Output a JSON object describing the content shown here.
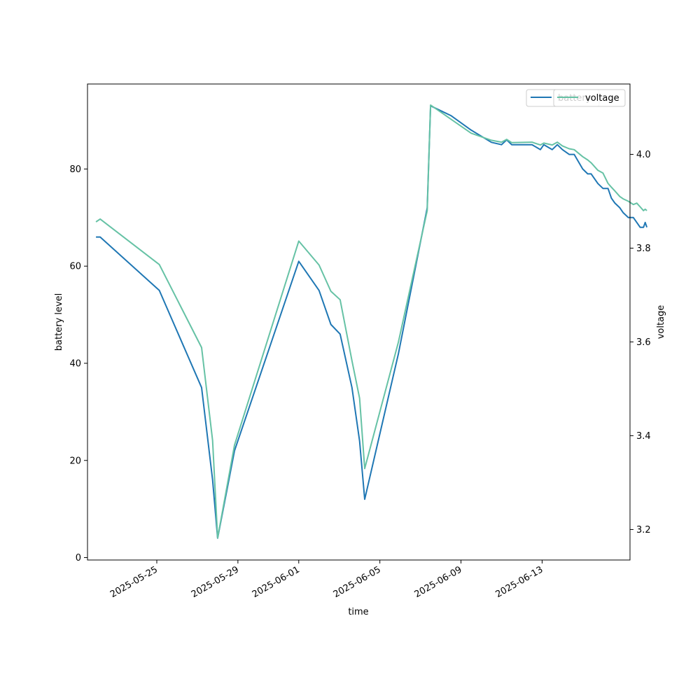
{
  "chart_data": {
    "type": "line",
    "title": "",
    "xlabel": "time",
    "ylabel": "battery level",
    "y2label": "voltage",
    "xlim": [
      "2025-05-21T14:00",
      "2025-06-17T08:00"
    ],
    "ylim": [
      -0.5,
      97.5
    ],
    "y2lim": [
      3.135,
      4.15
    ],
    "xticks": [
      "2025-05-25",
      "2025-05-29",
      "2025-06-01",
      "2025-06-05",
      "2025-06-09",
      "2025-06-13"
    ],
    "yticks": [
      0,
      20,
      40,
      60,
      80
    ],
    "y2ticks": [
      3.2,
      3.4,
      3.6,
      3.8,
      4.0
    ],
    "grid": false,
    "legend": {
      "placement": "top-right",
      "entries": [
        "battery",
        "voltage"
      ]
    },
    "series": [
      {
        "name": "battery",
        "axis": "left",
        "color": "#1f77b4",
        "points": [
          [
            "2025-05-22T00:00",
            66
          ],
          [
            "2025-05-22T05:00",
            66
          ],
          [
            "2025-05-25T03:00",
            55
          ],
          [
            "2025-05-27T05:00",
            35
          ],
          [
            "2025-05-27T18:00",
            16
          ],
          [
            "2025-05-28T00:00",
            4
          ],
          [
            "2025-05-28T20:00",
            22
          ],
          [
            "2025-06-01T00:00",
            61
          ],
          [
            "2025-06-02T00:00",
            55
          ],
          [
            "2025-06-02T14:00",
            48
          ],
          [
            "2025-06-03T01:00",
            46
          ],
          [
            "2025-06-03T15:00",
            35
          ],
          [
            "2025-06-04T00:00",
            24
          ],
          [
            "2025-06-04T06:00",
            12
          ],
          [
            "2025-06-05T22:00",
            42
          ],
          [
            "2025-06-07T08:00",
            72
          ],
          [
            "2025-06-07T12:00",
            93
          ],
          [
            "2025-06-08T12:00",
            91
          ],
          [
            "2025-06-09T12:00",
            88
          ],
          [
            "2025-06-10T12:00",
            85.5
          ],
          [
            "2025-06-11T00:00",
            85
          ],
          [
            "2025-06-11T06:00",
            86
          ],
          [
            "2025-06-11T12:00",
            85
          ],
          [
            "2025-06-12T12:00",
            85
          ],
          [
            "2025-06-12T22:00",
            84
          ],
          [
            "2025-06-13T02:00",
            85
          ],
          [
            "2025-06-13T12:00",
            84
          ],
          [
            "2025-06-13T18:00",
            85
          ],
          [
            "2025-06-14T00:00",
            84
          ],
          [
            "2025-06-14T08:00",
            83
          ],
          [
            "2025-06-14T14:00",
            83
          ],
          [
            "2025-06-15T00:00",
            80
          ],
          [
            "2025-06-15T06:00",
            79
          ],
          [
            "2025-06-15T10:00",
            79
          ],
          [
            "2025-06-15T14:00",
            78
          ],
          [
            "2025-06-15T18:00",
            77
          ],
          [
            "2025-06-16T00:00",
            76
          ],
          [
            "2025-06-16T06:00",
            76
          ],
          [
            "2025-06-16T10:00",
            74
          ],
          [
            "2025-06-16T14:00",
            73
          ],
          [
            "2025-06-16T20:00",
            72
          ],
          [
            "2025-06-17T00:00",
            71
          ],
          [
            "2025-06-17T06:00",
            70
          ],
          [
            "2025-06-17T12:00",
            70
          ],
          [
            "2025-06-17T16:00",
            69
          ],
          [
            "2025-06-17T20:00",
            68
          ],
          [
            "2025-06-18T00:00",
            68
          ],
          [
            "2025-06-18T02:00",
            69
          ],
          [
            "2025-06-18T04:00",
            68
          ]
        ]
      },
      {
        "name": "voltage",
        "axis": "right",
        "color": "#66c2a5",
        "points": [
          [
            "2025-05-22T00:00",
            3.856
          ],
          [
            "2025-05-22T05:00",
            3.862
          ],
          [
            "2025-05-25T03:00",
            3.765
          ],
          [
            "2025-05-27T05:00",
            3.588
          ],
          [
            "2025-05-27T18:00",
            3.39
          ],
          [
            "2025-05-28T00:00",
            3.182
          ],
          [
            "2025-05-28T20:00",
            3.38
          ],
          [
            "2025-06-01T00:00",
            3.815
          ],
          [
            "2025-06-02T00:00",
            3.764
          ],
          [
            "2025-06-02T14:00",
            3.708
          ],
          [
            "2025-06-03T01:00",
            3.69
          ],
          [
            "2025-06-03T15:00",
            3.56
          ],
          [
            "2025-06-04T00:00",
            3.48
          ],
          [
            "2025-06-04T06:00",
            3.33
          ],
          [
            "2025-06-05T22:00",
            3.6
          ],
          [
            "2025-06-07T08:00",
            3.88
          ],
          [
            "2025-06-07T12:00",
            4.105
          ],
          [
            "2025-06-08T12:00",
            4.075
          ],
          [
            "2025-06-09T12:00",
            4.045
          ],
          [
            "2025-06-10T12:00",
            4.03
          ],
          [
            "2025-06-11T00:00",
            4.026
          ],
          [
            "2025-06-11T06:00",
            4.032
          ],
          [
            "2025-06-11T12:00",
            4.025
          ],
          [
            "2025-06-12T12:00",
            4.026
          ],
          [
            "2025-06-12T22:00",
            4.02
          ],
          [
            "2025-06-13T02:00",
            4.024
          ],
          [
            "2025-06-13T12:00",
            4.02
          ],
          [
            "2025-06-13T18:00",
            4.026
          ],
          [
            "2025-06-14T00:00",
            4.018
          ],
          [
            "2025-06-14T08:00",
            4.012
          ],
          [
            "2025-06-14T14:00",
            4.01
          ],
          [
            "2025-06-15T00:00",
            3.995
          ],
          [
            "2025-06-15T06:00",
            3.988
          ],
          [
            "2025-06-15T10:00",
            3.982
          ],
          [
            "2025-06-15T14:00",
            3.974
          ],
          [
            "2025-06-15T18:00",
            3.966
          ],
          [
            "2025-06-16T00:00",
            3.96
          ],
          [
            "2025-06-16T06:00",
            3.938
          ],
          [
            "2025-06-16T10:00",
            3.93
          ],
          [
            "2025-06-16T14:00",
            3.922
          ],
          [
            "2025-06-16T20:00",
            3.91
          ],
          [
            "2025-06-17T00:00",
            3.905
          ],
          [
            "2025-06-17T06:00",
            3.9
          ],
          [
            "2025-06-17T12:00",
            3.893
          ],
          [
            "2025-06-17T16:00",
            3.896
          ],
          [
            "2025-06-17T20:00",
            3.888
          ],
          [
            "2025-06-18T00:00",
            3.88
          ],
          [
            "2025-06-18T02:00",
            3.883
          ],
          [
            "2025-06-18T04:00",
            3.88
          ]
        ]
      }
    ]
  }
}
